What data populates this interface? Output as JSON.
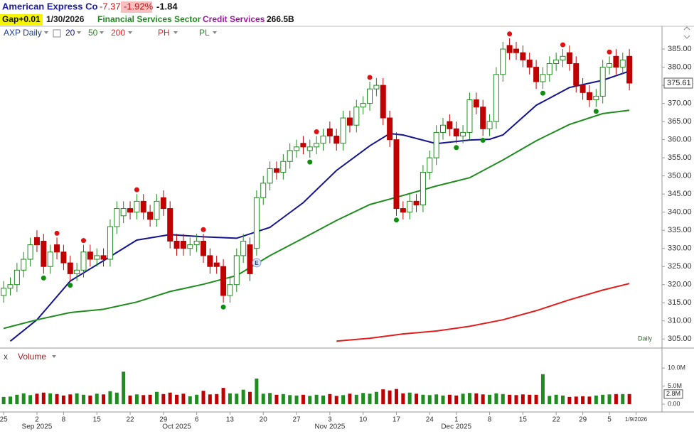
{
  "header": {
    "name": "American Express Co",
    "change": "-7.37",
    "change_pct": "-1.92%",
    "after_hours": "-1.84",
    "gap": "Gap+0.01",
    "date": "1/30/2026",
    "sector": "Financial Services Sector",
    "industry": "Credit Services",
    "market_cap": "266.5B"
  },
  "toolbar": {
    "symbol": "AXP Daily",
    "ph": "PH",
    "pl": "PL"
  },
  "chart_data": {
    "type": "candlestick",
    "open": [
      317,
      319,
      320,
      324,
      327,
      333,
      332,
      325,
      331,
      329,
      326,
      323,
      324,
      329,
      327,
      328,
      327,
      336,
      339,
      341,
      340,
      343,
      340,
      338,
      344,
      341,
      332,
      332,
      330,
      331,
      332,
      328,
      326,
      325,
      317,
      320,
      328,
      331,
      330,
      344,
      348,
      352,
      351,
      354,
      357,
      359,
      357,
      358,
      359,
      363,
      361,
      359,
      366,
      364,
      369,
      370,
      374,
      375,
      366,
      360,
      341,
      340,
      343,
      342,
      351,
      355,
      362,
      365,
      363,
      361,
      362,
      371,
      369,
      363,
      365,
      378,
      386,
      385,
      384,
      382,
      380,
      376,
      378,
      381,
      382,
      384,
      381,
      375,
      373,
      371,
      372,
      380,
      383,
      380,
      383
    ],
    "high": [
      321,
      322,
      326,
      329,
      333,
      335,
      334,
      331,
      333,
      331,
      328,
      326,
      331,
      331,
      330,
      330,
      338,
      343,
      343,
      343,
      345,
      345,
      342,
      345,
      346,
      343,
      334,
      334,
      333,
      334,
      334,
      330,
      328,
      327,
      322,
      330,
      334,
      333,
      346,
      350,
      354,
      354,
      356,
      359,
      360,
      361,
      360,
      361,
      363,
      365,
      363,
      368,
      368,
      371,
      372,
      376,
      377,
      377,
      368,
      362,
      343,
      345,
      345,
      353,
      357,
      364,
      366,
      367,
      365,
      364,
      373,
      373,
      371,
      367,
      380,
      387,
      388,
      387,
      386,
      384,
      382,
      380,
      383,
      384,
      385,
      386,
      383,
      377,
      375,
      374,
      382,
      383,
      385,
      384,
      385
    ],
    "low": [
      315,
      317,
      318,
      322,
      325,
      329,
      323,
      323,
      327,
      324,
      321,
      321,
      322,
      325,
      325,
      325,
      325,
      334,
      337,
      338,
      338,
      338,
      336,
      336,
      339,
      330,
      328,
      328,
      328,
      329,
      326,
      323,
      323,
      315,
      315,
      318,
      326,
      321,
      328,
      342,
      346,
      349,
      349,
      352,
      355,
      356,
      355,
      356,
      357,
      359,
      357,
      357,
      362,
      362,
      367,
      368,
      372,
      364,
      358,
      339,
      338,
      338,
      340,
      340,
      349,
      353,
      360,
      361,
      359,
      359,
      360,
      367,
      361,
      361,
      363,
      376,
      382,
      382,
      380,
      378,
      374,
      374,
      376,
      379,
      380,
      379,
      373,
      371,
      369,
      369,
      370,
      378,
      378,
      378,
      373.61
    ],
    "close": [
      319,
      320,
      324,
      327,
      331,
      331,
      325,
      329,
      329,
      326,
      323,
      324,
      329,
      327,
      328,
      327,
      336,
      341,
      341,
      340,
      343,
      340,
      338,
      343,
      341,
      332,
      330,
      330,
      331,
      332,
      328,
      325,
      325,
      317,
      320,
      328,
      332,
      323,
      344,
      348,
      352,
      351,
      354,
      357,
      358,
      358,
      358,
      359,
      361,
      361,
      359,
      366,
      364,
      369,
      370,
      374,
      375,
      366,
      360,
      341,
      340,
      343,
      342,
      351,
      355,
      362,
      364,
      363,
      361,
      362,
      371,
      369,
      363,
      365,
      378,
      385,
      384,
      384,
      382,
      380,
      376,
      378,
      381,
      382,
      383,
      381,
      375,
      373,
      371,
      372,
      380,
      381,
      380,
      382,
      375.61
    ],
    "up_color": "#1e8c1e",
    "down_color": "#c00000",
    "xlim": [
      -0.55,
      98.9
    ],
    "ylim": [
      302.5,
      390.7
    ],
    "yticks": [
      {
        "value": 305,
        "label": "305.00"
      },
      {
        "value": 310,
        "label": "310.00"
      },
      {
        "value": 315,
        "label": "315.00"
      },
      {
        "value": 320,
        "label": "320.00"
      },
      {
        "value": 325,
        "label": "325.00"
      },
      {
        "value": 330,
        "label": "330.00"
      },
      {
        "value": 335,
        "label": "335.00"
      },
      {
        "value": 340,
        "label": "340.00"
      },
      {
        "value": 345,
        "label": "345.00"
      },
      {
        "value": 350,
        "label": "350.00"
      },
      {
        "value": 355,
        "label": "355.00"
      },
      {
        "value": 360,
        "label": "360.00"
      },
      {
        "value": 365,
        "label": "365.00"
      },
      {
        "value": 370,
        "label": "370.00"
      },
      {
        "value": 375,
        "label": "375.00"
      },
      {
        "value": 380,
        "label": "380.00"
      },
      {
        "value": 385,
        "label": "385.00"
      }
    ],
    "xticks": [
      {
        "value": 0,
        "label": "25"
      },
      {
        "value": 5,
        "label": "2"
      },
      {
        "value": 9,
        "label": "8"
      },
      {
        "value": 14,
        "label": "15"
      },
      {
        "value": 19,
        "label": "22"
      },
      {
        "value": 24,
        "label": "29"
      },
      {
        "value": 29,
        "label": "6"
      },
      {
        "value": 34,
        "label": "13"
      },
      {
        "value": 39,
        "label": "20"
      },
      {
        "value": 44,
        "label": "27"
      },
      {
        "value": 49,
        "label": "3"
      },
      {
        "value": 54,
        "label": "10"
      },
      {
        "value": 59,
        "label": "17"
      },
      {
        "value": 64,
        "label": "24"
      },
      {
        "value": 68,
        "label": "1"
      },
      {
        "value": 73,
        "label": "8"
      },
      {
        "value": 78,
        "label": "15"
      },
      {
        "value": 83,
        "label": "22"
      },
      {
        "value": 87,
        "label": "29"
      },
      {
        "value": 91,
        "label": "5"
      },
      {
        "value": 95,
        "label": "1/9/2026"
      }
    ],
    "month_ticks": [
      {
        "value": 5,
        "label": "Sep 2025"
      },
      {
        "value": 26,
        "label": "Oct 2025"
      },
      {
        "value": 49,
        "label": "Nov 2025"
      },
      {
        "value": 68,
        "label": "Dec 2025"
      }
    ],
    "moving_averages": [
      {
        "name": "20",
        "color": "#14148c",
        "x": [
          1,
          5,
          10,
          15,
          20,
          25,
          30,
          35,
          40,
          45,
          50,
          55,
          58,
          60,
          65,
          70,
          73,
          75,
          80,
          85,
          90,
          94
        ],
        "values": [
          304.4,
          310.3,
          321,
          326.6,
          332.3,
          333.8,
          333.2,
          332.8,
          335.8,
          342.6,
          351.5,
          358.3,
          361.7,
          361.3,
          358.9,
          359.9,
          360.1,
          361.3,
          369.5,
          374.4,
          376.4,
          378.9
        ]
      },
      {
        "name": "50",
        "color": "#1e8c1e",
        "x": [
          0,
          5,
          10,
          15,
          20,
          25,
          30,
          35,
          40,
          45,
          50,
          55,
          60,
          65,
          70,
          75,
          80,
          85,
          90,
          94
        ],
        "values": [
          307.9,
          310.3,
          312.3,
          313.2,
          315.2,
          318.1,
          320.1,
          322.5,
          328,
          332.8,
          337.7,
          342.1,
          344.6,
          347.2,
          349.5,
          354.4,
          359.7,
          364.2,
          367.2,
          368.1
        ]
      },
      {
        "name": "200",
        "color": "#e01e1e",
        "x": [
          50,
          55,
          60,
          65,
          70,
          75,
          80,
          85,
          90,
          94
        ],
        "values": [
          304.4,
          305.2,
          306.4,
          307.2,
          308.5,
          310.3,
          312.8,
          315.8,
          318.5,
          320.3
        ]
      }
    ],
    "pivot_highs": {
      "color": "#e01010",
      "x": [
        8,
        12,
        20,
        30,
        47,
        55,
        76,
        84,
        91
      ]
    },
    "pivot_lows": {
      "color": "#108c10",
      "x": [
        6,
        10,
        33,
        46,
        59,
        68,
        72,
        81,
        89
      ]
    },
    "earnings": {
      "label": "E",
      "x": 38
    },
    "period_label": "Daily",
    "volume": {
      "title": "Volume",
      "close_label": "x",
      "values": [
        2.0,
        2.1,
        2.6,
        3.0,
        2.5,
        2.9,
        3.2,
        3.0,
        2.8,
        2.4,
        2.7,
        3.0,
        2.6,
        2.4,
        2.9,
        2.7,
        3.6,
        3.2,
        9.0,
        2.4,
        2.7,
        2.5,
        2.6,
        3.4,
        2.8,
        3.2,
        2.6,
        2.9,
        2.2,
        2.6,
        3.7,
        2.7,
        2.8,
        4.5,
        3.0,
        2.9,
        4.0,
        3.4,
        7.1,
        2.9,
        3.1,
        2.6,
        2.8,
        2.5,
        2.4,
        2.6,
        2.3,
        2.6,
        2.4,
        2.8,
        2.3,
        2.5,
        2.9,
        2.6,
        3.1,
        2.9,
        3.4,
        4.1,
        3.8,
        4.2,
        3.0,
        3.2,
        2.9,
        2.6,
        2.5,
        2.7,
        2.4,
        2.6,
        2.4,
        2.9,
        3.1,
        3.0,
        2.7,
        2.6,
        3.0,
        2.8,
        2.6,
        2.5,
        2.7,
        2.6,
        2.6,
        8.3,
        2.3,
        2.6,
        2.4,
        2.0,
        2.1,
        2.2,
        2.1,
        2.4,
        2.6,
        2.7,
        2.8,
        2.8,
        2.8
      ],
      "ylim": [
        0,
        12
      ],
      "yticks": [
        {
          "value": 0,
          "label": "0.00"
        },
        {
          "value": 5,
          "label": "5.0M"
        },
        {
          "value": 10,
          "label": "10.0M"
        }
      ],
      "last_value_label": "2.8M"
    }
  }
}
